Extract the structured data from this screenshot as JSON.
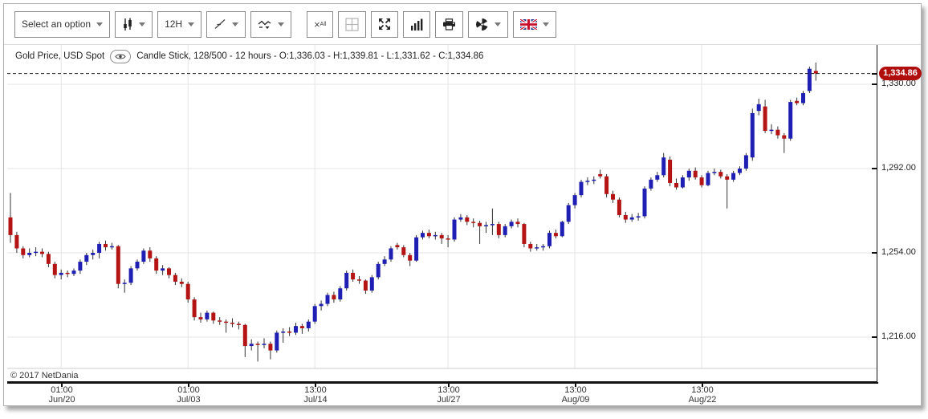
{
  "toolbar": {
    "select_option": "Select an option",
    "interval": "12H",
    "remove_all": {
      "symbol": "×",
      "subscript": "All"
    }
  },
  "title_bar": {
    "instrument": "Gold Price, USD Spot",
    "series_info": "Candle Stick, 128/500 - 12 hours - O:1,336.03 - H:1,339.81 - L:1,331.62 - C:1,334.86"
  },
  "price_axis": {
    "current_price_badge": "1,334.86",
    "tick_labels": [
      "1,330.00",
      "1,292.00",
      "1,254.00",
      "1,216.00"
    ]
  },
  "time_axis": {
    "ticks": [
      {
        "time": "01:00",
        "date": "Jun/20"
      },
      {
        "time": "01:00",
        "date": "Jul/03"
      },
      {
        "time": "13:00",
        "date": "Jul/14"
      },
      {
        "time": "13:00",
        "date": "Jul/27"
      },
      {
        "time": "13:00",
        "date": "Aug/09"
      },
      {
        "time": "13:00",
        "date": "Aug/22"
      }
    ]
  },
  "copyright": "© 2017 NetDania",
  "colors": {
    "bullish": "#1f1fb4",
    "bearish": "#b41414",
    "wick": "#333333",
    "grid": "#e4e4e4",
    "badge_bg": "#b00d0d",
    "dashed_line": "#222222"
  },
  "chart_data": {
    "type": "candlestick",
    "title": "Gold Price, USD Spot",
    "period": "12 hours",
    "visible_candles": "128/500",
    "current_price": 1334.86,
    "last_candle": {
      "open": 1336.03,
      "high": 1339.81,
      "low": 1331.62,
      "close": 1334.86
    },
    "y_ticks": [
      1330,
      1292,
      1254,
      1216
    ],
    "ylim": [
      1203,
      1341
    ],
    "x_tick_candle_indices": [
      8,
      28,
      48,
      69,
      89,
      109
    ],
    "x_tick_labels": [
      "01:00 Jun/20",
      "01:00 Jul/03",
      "13:00 Jul/14",
      "13:00 Jul/27",
      "13:00 Aug/09",
      "13:00 Aug/22"
    ],
    "ohlc": [
      [
        1270,
        1281,
        1258.5,
        1262
      ],
      [
        1262,
        1263.5,
        1254,
        1256
      ],
      [
        1256,
        1257,
        1251.5,
        1253
      ],
      [
        1253,
        1256,
        1252,
        1254
      ],
      [
        1254,
        1256.5,
        1252.5,
        1254.5
      ],
      [
        1254.5,
        1256,
        1252,
        1253.5
      ],
      [
        1253.5,
        1254.5,
        1247.5,
        1249
      ],
      [
        1249,
        1250,
        1242.5,
        1244
      ],
      [
        1244,
        1246.5,
        1242,
        1245
      ],
      [
        1245,
        1246,
        1243,
        1244.5
      ],
      [
        1244.5,
        1247,
        1243.5,
        1246
      ],
      [
        1246,
        1251,
        1244.5,
        1250
      ],
      [
        1250,
        1254,
        1248.5,
        1253
      ],
      [
        1253,
        1255.5,
        1251,
        1254
      ],
      [
        1254,
        1259,
        1251.5,
        1258
      ],
      [
        1258,
        1259.5,
        1255,
        1256.5
      ],
      [
        1256.5,
        1258.5,
        1255.5,
        1257
      ],
      [
        1257,
        1257.5,
        1238,
        1240
      ],
      [
        1240,
        1242,
        1236,
        1240.5
      ],
      [
        1240.5,
        1248,
        1239.5,
        1247
      ],
      [
        1247,
        1251,
        1246,
        1250
      ],
      [
        1250,
        1256,
        1249,
        1255
      ],
      [
        1255,
        1256.5,
        1250,
        1251.5
      ],
      [
        1251.5,
        1252.5,
        1244.5,
        1246
      ],
      [
        1246,
        1248.5,
        1244,
        1247
      ],
      [
        1247,
        1247.5,
        1242.5,
        1244
      ],
      [
        1244,
        1245,
        1239.5,
        1241
      ],
      [
        1241,
        1242.5,
        1238.5,
        1240
      ],
      [
        1240,
        1241,
        1231.5,
        1233
      ],
      [
        1233,
        1234,
        1223.5,
        1225
      ],
      [
        1225,
        1227,
        1222.5,
        1224
      ],
      [
        1224,
        1228,
        1223,
        1227
      ],
      [
        1227,
        1227.5,
        1222,
        1223.5
      ],
      [
        1223.5,
        1225,
        1221.5,
        1223
      ],
      [
        1223,
        1224,
        1218,
        1222.5
      ],
      [
        1222.5,
        1224.5,
        1220.5,
        1222
      ],
      [
        1222,
        1223,
        1219.5,
        1221.5
      ],
      [
        1221.5,
        1222,
        1207,
        1212
      ],
      [
        1212,
        1215,
        1210,
        1213
      ],
      [
        1213,
        1214,
        1205,
        1212.5
      ],
      [
        1212.5,
        1215.5,
        1211,
        1213
      ],
      [
        1213,
        1214,
        1206,
        1210
      ],
      [
        1210,
        1219,
        1209,
        1218
      ],
      [
        1218,
        1220,
        1213.5,
        1218.5
      ],
      [
        1218.5,
        1220.5,
        1216.5,
        1218
      ],
      [
        1218,
        1222.5,
        1217,
        1221
      ],
      [
        1221,
        1222,
        1217.5,
        1220
      ],
      [
        1220,
        1224,
        1218.5,
        1223
      ],
      [
        1223,
        1231,
        1222,
        1230
      ],
      [
        1230,
        1232.5,
        1228,
        1231
      ],
      [
        1231,
        1236,
        1230,
        1235
      ],
      [
        1235,
        1236.5,
        1231.5,
        1233
      ],
      [
        1233,
        1239,
        1232,
        1238
      ],
      [
        1238,
        1246,
        1237,
        1245
      ],
      [
        1245,
        1246.5,
        1241,
        1242
      ],
      [
        1242,
        1243.5,
        1240,
        1241.5
      ],
      [
        1241.5,
        1242,
        1235.5,
        1237
      ],
      [
        1237,
        1244,
        1236,
        1243
      ],
      [
        1243,
        1250,
        1242,
        1249
      ],
      [
        1249,
        1252.5,
        1248,
        1251
      ],
      [
        1251,
        1257,
        1250,
        1256
      ],
      [
        1257.5,
        1258.5,
        1255.5,
        1256.5
      ],
      [
        1256.5,
        1257.5,
        1252,
        1253
      ],
      [
        1253,
        1254,
        1248,
        1250.5
      ],
      [
        1250.5,
        1262,
        1250,
        1261
      ],
      [
        1261,
        1264,
        1260,
        1263
      ],
      [
        1263,
        1264.5,
        1260.5,
        1261.5
      ],
      [
        1261.5,
        1263.5,
        1260,
        1262
      ],
      [
        1262,
        1263,
        1258,
        1260.5
      ],
      [
        1260.5,
        1262,
        1256.5,
        1260
      ],
      [
        1260,
        1270,
        1259,
        1269
      ],
      [
        1269,
        1271.5,
        1268,
        1270
      ],
      [
        1270,
        1271,
        1266.5,
        1268
      ],
      [
        1268,
        1269.5,
        1265.5,
        1267.5
      ],
      [
        1267.5,
        1268.5,
        1258,
        1266
      ],
      [
        1266,
        1268,
        1263,
        1266.5
      ],
      [
        1266.5,
        1274,
        1262,
        1267
      ],
      [
        1267,
        1268,
        1260.5,
        1262
      ],
      [
        1262,
        1267,
        1261,
        1266
      ],
      [
        1266,
        1269,
        1265,
        1268
      ],
      [
        1268,
        1269.5,
        1265.5,
        1267
      ],
      [
        1267,
        1267.5,
        1256.5,
        1258
      ],
      [
        1258,
        1259,
        1254.5,
        1256
      ],
      [
        1256,
        1258,
        1255,
        1256.5
      ],
      [
        1256.5,
        1258,
        1255,
        1257
      ],
      [
        1257,
        1264,
        1256,
        1263
      ],
      [
        1263,
        1264.5,
        1260.5,
        1261.5
      ],
      [
        1261.5,
        1268.5,
        1261,
        1268
      ],
      [
        1268,
        1276.5,
        1267,
        1275.5
      ],
      [
        1275.5,
        1281,
        1274,
        1280
      ],
      [
        1280,
        1287,
        1279,
        1286
      ],
      [
        1286,
        1288,
        1284.5,
        1286.5
      ],
      [
        1286.5,
        1288.5,
        1285,
        1287
      ],
      [
        1289.5,
        1291.5,
        1287.5,
        1288.5
      ],
      [
        1288.5,
        1289.5,
        1279,
        1280.5
      ],
      [
        1280.5,
        1282,
        1276.5,
        1278
      ],
      [
        1278,
        1279,
        1270,
        1271
      ],
      [
        1271,
        1272.5,
        1267.5,
        1269
      ],
      [
        1269,
        1271.5,
        1268,
        1270
      ],
      [
        1270,
        1272,
        1268.5,
        1270.5
      ],
      [
        1270.5,
        1284,
        1269.5,
        1283
      ],
      [
        1283,
        1288,
        1282,
        1287
      ],
      [
        1287,
        1290.5,
        1286,
        1289
      ],
      [
        1289,
        1299,
        1288,
        1297
      ],
      [
        1296,
        1297.5,
        1284,
        1285.5
      ],
      [
        1285.5,
        1287.5,
        1282.5,
        1283.5
      ],
      [
        1283.5,
        1289,
        1283,
        1288
      ],
      [
        1288,
        1292,
        1286.5,
        1291
      ],
      [
        1291,
        1292.5,
        1287,
        1288
      ],
      [
        1288,
        1289,
        1283.5,
        1284.5
      ],
      [
        1284.5,
        1291,
        1284,
        1290
      ],
      [
        1290,
        1292,
        1289,
        1290.5
      ],
      [
        1290.5,
        1291.5,
        1287.5,
        1288.5
      ],
      [
        1288.5,
        1289.5,
        1274,
        1287
      ],
      [
        1287,
        1291,
        1286,
        1290
      ],
      [
        1290,
        1293,
        1289,
        1292
      ],
      [
        1292,
        1299,
        1291,
        1298
      ],
      [
        1297,
        1319,
        1295.5,
        1317
      ],
      [
        1318,
        1323.5,
        1316,
        1321
      ],
      [
        1320,
        1323,
        1308,
        1309
      ],
      [
        1309,
        1312,
        1307.5,
        1309.5
      ],
      [
        1309.5,
        1311,
        1305.5,
        1307
      ],
      [
        1307,
        1308,
        1299,
        1305.5
      ],
      [
        1305.5,
        1323,
        1304.5,
        1322
      ],
      [
        1322.5,
        1324,
        1320.5,
        1321.5
      ],
      [
        1321.5,
        1327,
        1320.5,
        1326
      ],
      [
        1327,
        1338,
        1326,
        1337
      ],
      [
        1336.03,
        1339.81,
        1331.62,
        1334.86
      ]
    ]
  }
}
